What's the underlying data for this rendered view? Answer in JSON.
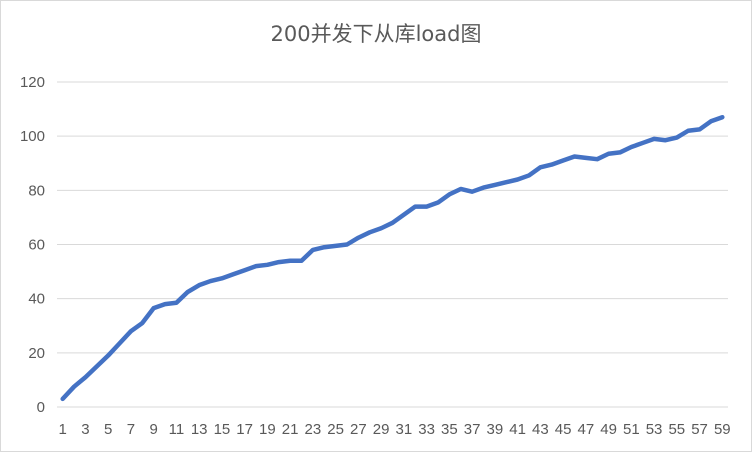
{
  "chart_data": {
    "type": "line",
    "title": "200并发下从库load图",
    "xlabel": "",
    "ylabel": "",
    "ylim": [
      0,
      120
    ],
    "yticks": [
      0,
      20,
      40,
      60,
      80,
      100,
      120
    ],
    "xticks": [
      "1",
      "3",
      "5",
      "7",
      "9",
      "11",
      "13",
      "15",
      "17",
      "19",
      "21",
      "23",
      "25",
      "27",
      "29",
      "31",
      "33",
      "35",
      "37",
      "39",
      "41",
      "43",
      "45",
      "47",
      "49",
      "51",
      "53",
      "55",
      "57",
      "59"
    ],
    "grid": "horizontal",
    "legend": "none",
    "x": [
      1,
      2,
      3,
      4,
      5,
      6,
      7,
      8,
      9,
      10,
      11,
      12,
      13,
      14,
      15,
      16,
      17,
      18,
      19,
      20,
      21,
      22,
      23,
      24,
      25,
      26,
      27,
      28,
      29,
      30,
      31,
      32,
      33,
      34,
      35,
      36,
      37,
      38,
      39,
      40,
      41,
      42,
      43,
      44,
      45,
      46,
      47,
      48,
      49,
      50,
      51,
      52,
      53,
      54,
      55,
      56,
      57,
      58,
      59
    ],
    "series": [
      {
        "color": "#4472c4",
        "values": [
          3,
          7.5,
          11,
          15,
          19,
          23.5,
          28,
          31,
          36.5,
          38,
          38.5,
          42.5,
          45,
          46.5,
          47.5,
          49,
          50.5,
          52,
          52.5,
          53.5,
          54,
          54,
          58,
          59,
          59.5,
          60,
          62.5,
          64.5,
          66,
          68,
          71,
          74,
          74,
          75.5,
          78.5,
          80.5,
          79.5,
          81,
          82,
          83,
          84,
          85.5,
          88.5,
          89.5,
          91,
          92.5,
          92,
          91.5,
          93.5,
          94,
          96,
          97.5,
          99,
          98.5,
          99.5,
          102,
          102.5,
          105.5,
          107
        ]
      }
    ]
  }
}
